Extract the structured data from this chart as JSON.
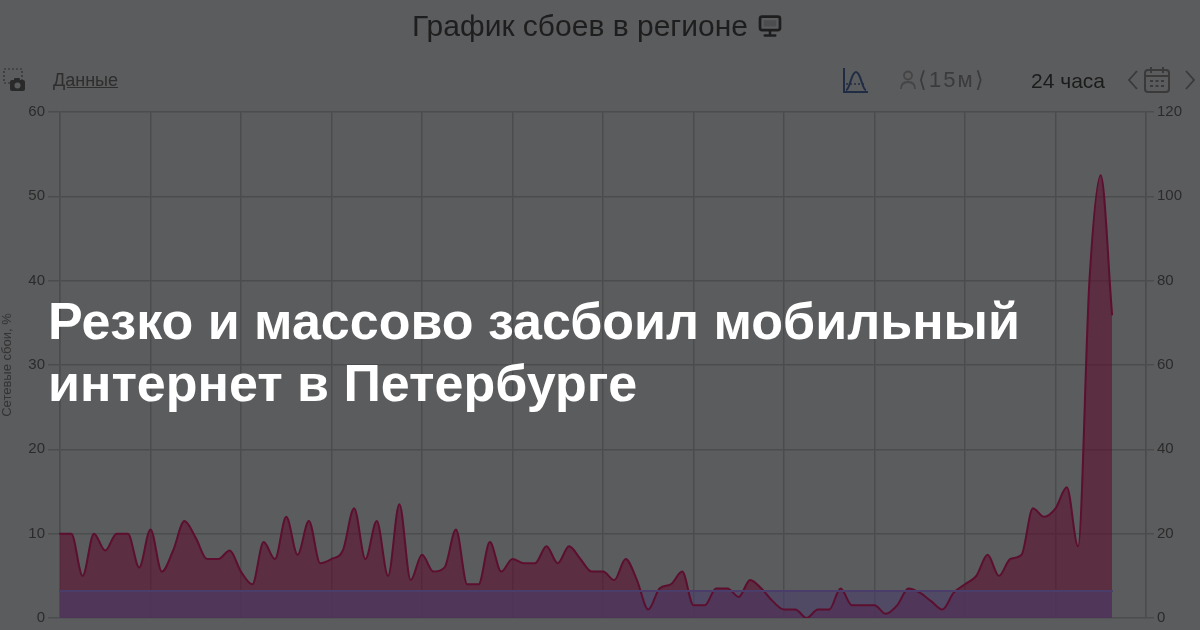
{
  "chart_data": {
    "type": "area",
    "title": "Резко и массово засбоил мобильный интернет в Петербурге",
    "subtitle": "График сбоев в регионе",
    "ylabel": "Сетевые сбои, %",
    "annotations": [
      "Данные",
      "⟨15м⟩",
      "24 часа"
    ],
    "categories": [
      null,
      null,
      null,
      null,
      null,
      null,
      null,
      null,
      null,
      null,
      null,
      null,
      null,
      null,
      null,
      null,
      null,
      null,
      null,
      null,
      null,
      null,
      null,
      null,
      null,
      null,
      null,
      null,
      null,
      null,
      null,
      null,
      null,
      null,
      null,
      null,
      null,
      null,
      null,
      null,
      null,
      null,
      null,
      null,
      null,
      null,
      null,
      null,
      null,
      null,
      null,
      null,
      null,
      null,
      null,
      null,
      null,
      null,
      null,
      null,
      null,
      null,
      null,
      null,
      null,
      null,
      null,
      null,
      null,
      null,
      null,
      null,
      null,
      null,
      null,
      null,
      null,
      null,
      null,
      null,
      null,
      null,
      null,
      null,
      null,
      null,
      null,
      null,
      null,
      null,
      null,
      null,
      null,
      null,
      null,
      null,
      null
    ],
    "series": [
      {
        "color": "#5c0f2f",
        "values": [
          10,
          10,
          5,
          10,
          8,
          10,
          10,
          6,
          10.5,
          5.5,
          8,
          11.5,
          9.5,
          7,
          7,
          8,
          5.5,
          4,
          9,
          7,
          12,
          7.5,
          11.5,
          6.5,
          7,
          8,
          13,
          7,
          11.5,
          5,
          13.5,
          4.5,
          7.5,
          5.5,
          6,
          10.5,
          4,
          4,
          9,
          5.5,
          7,
          6.5,
          6.5,
          8.5,
          6.5,
          8.5,
          7,
          5.5,
          5.5,
          4.5,
          7,
          4.5,
          1,
          3.5,
          4,
          5.5,
          1.5,
          1.5,
          3.5,
          3.5,
          2.5,
          4.5,
          3.5,
          2,
          1,
          1,
          0,
          1,
          1,
          3.5,
          1.5,
          1.5,
          1.5,
          0.5,
          1.5,
          3.5,
          3,
          2,
          1,
          3,
          4,
          5,
          7.5,
          5,
          7,
          7.5,
          13,
          12,
          13,
          15.5,
          8.5,
          40,
          52.5,
          36,
          null,
          null,
          null
        ]
      },
      {
        "color": "#4a3d6a",
        "values": [
          3.2,
          3.2,
          3.2,
          3.2,
          3.2,
          3.2,
          3.2,
          3.2,
          3.2,
          3.2,
          3.2,
          3.2,
          3.2,
          3.2,
          3.2,
          3.2,
          3.2,
          3.2,
          3.2,
          3.2,
          3.2,
          3.2,
          3.2,
          3.2,
          3.2,
          3.2,
          3.2,
          3.2,
          3.2,
          3.2,
          3.2,
          3.2,
          3.2,
          3.2,
          3.2,
          3.2,
          3.2,
          3.2,
          3.2,
          3.2,
          3.2,
          3.2,
          3.2,
          3.2,
          3.2,
          3.2,
          3.2,
          3.2,
          3.2,
          3.2,
          3.2,
          3.2,
          3.2,
          3.2,
          3.2,
          3.2,
          3.2,
          3.2,
          3.2,
          3.2,
          3.2,
          3.2,
          3.2,
          3.2,
          3.2,
          3.2,
          3.2,
          3.2,
          3.2,
          3.2,
          3.2,
          3.2,
          3.2,
          3.2,
          3.2,
          3.2,
          3.2,
          3.2,
          3.2,
          3.2,
          3.2,
          3.2,
          3.2,
          3.2,
          3.2,
          3.2,
          3.2,
          3.2,
          3.2,
          3.2,
          3.2,
          3.2,
          3.2,
          3.2,
          null,
          null,
          null
        ]
      }
    ],
    "ylim": [
      0,
      60
    ],
    "yticks": [
      0,
      10,
      20,
      30,
      40,
      50,
      60
    ],
    "y2lim": [
      0,
      120
    ],
    "y2ticks": [
      0,
      20,
      40,
      60,
      80,
      100,
      120
    ],
    "grid": true
  }
}
